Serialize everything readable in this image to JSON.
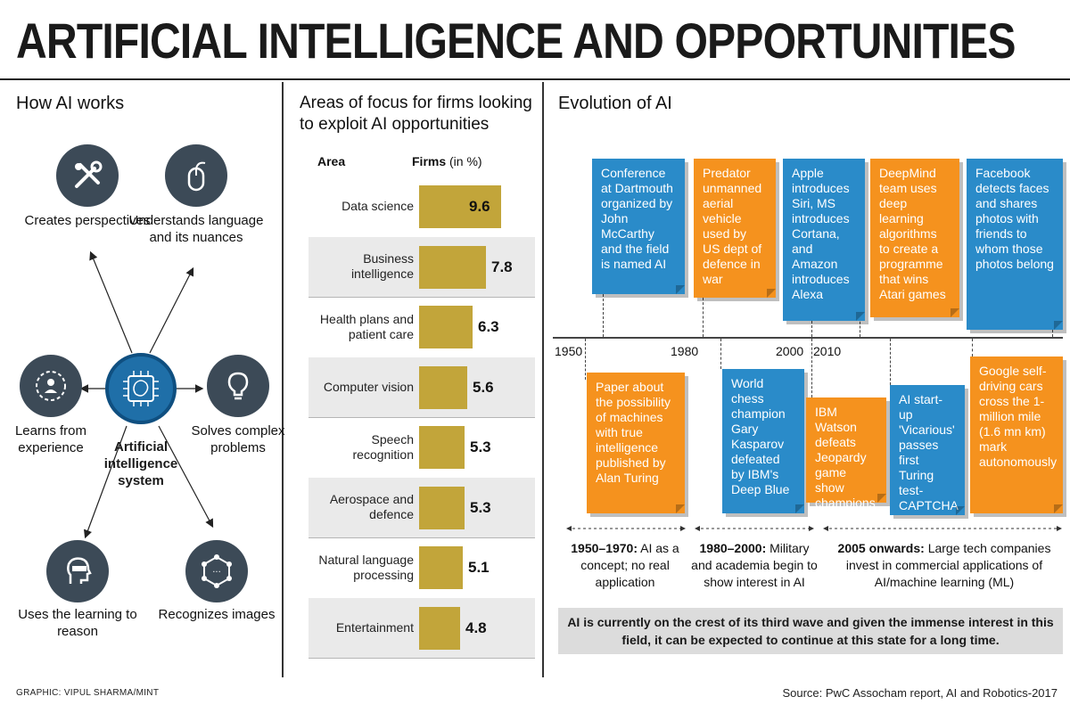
{
  "title": "ARTIFICIAL INTELLIGENCE AND OPPORTUNITIES",
  "how_ai": {
    "heading": "How AI works",
    "center": "Artificial intelligence system",
    "nodes": [
      {
        "label": "Creates perspectives",
        "icon": "tools-icon"
      },
      {
        "label": "Understands language and its nuances",
        "icon": "mouse-icon"
      },
      {
        "label": "Learns from experience",
        "icon": "learning-icon"
      },
      {
        "label": "Solves complex problems",
        "icon": "lightbulb-icon"
      },
      {
        "label": "Uses the learning to reason",
        "icon": "vr-head-icon"
      },
      {
        "label": "Recognizes images",
        "icon": "network-icon"
      }
    ]
  },
  "chart_data": {
    "type": "bar",
    "title": "Areas of focus for firms looking to exploit AI opportunities",
    "xlabel": "Firms (in %)",
    "ylabel": "Area",
    "col_head_area": "Area",
    "col_head_firms": "Firms",
    "col_head_unit": "(in %)",
    "categories": [
      "Data science",
      "Business intelligence",
      "Health plans and patient care",
      "Computer vision",
      "Speech recognition",
      "Aerospace and defence",
      "Natural language processing",
      "Entertainment"
    ],
    "values": [
      9.6,
      7.8,
      6.3,
      5.6,
      5.3,
      5.3,
      5.1,
      4.8
    ],
    "value_labels": [
      "9.6",
      "7.8",
      "6.3",
      "5.6",
      "5.3",
      "5.3",
      "5.1",
      "4.8"
    ],
    "bar_color": "#c2a53a",
    "xlim": [
      0,
      10
    ]
  },
  "evolution": {
    "heading": "Evolution of AI",
    "years": [
      "1950",
      "1980",
      "2000",
      "2010"
    ],
    "top_cards": [
      {
        "text": "Conference at Dartmouth organized by John McCarthy and the field is named AI",
        "color": "blue"
      },
      {
        "text": "Predator unmanned aerial vehicle used by US dept of defence in war",
        "color": "orange"
      },
      {
        "text": "Apple introduces Siri, MS introduces Cortana, and Amazon introduces Alexa",
        "color": "blue"
      },
      {
        "text": "DeepMind team uses deep learning algorithms to create a programme that wins Atari games",
        "color": "orange"
      },
      {
        "text": "Facebook detects faces and shares photos with friends to whom those photos belong",
        "color": "blue"
      }
    ],
    "bottom_cards": [
      {
        "text": "Paper about the possibility of machines with true intelligence published by Alan Turing",
        "color": "orange"
      },
      {
        "text": "World chess champion Gary Kasparov defeated by IBM's Deep Blue",
        "color": "blue"
      },
      {
        "text": "IBM Watson defeats Jeopardy game show champions",
        "color": "orange"
      },
      {
        "text": "AI start-up 'Vicarious' passes first Turing test-CAPTCHA",
        "color": "blue"
      },
      {
        "text": "Google self-driving cars cross the 1-million mile (1.6 mn km) mark autonomously",
        "color": "orange"
      }
    ],
    "eras": [
      {
        "bold": "1950–1970:",
        "text": " AI as a concept; no real application"
      },
      {
        "bold": "1980–2000:",
        "text": " Military and academia begin to show interest in AI"
      },
      {
        "bold": "2005 onwards:",
        "text": " Large tech companies invest in commercial applications of AI/machine learning (ML)"
      }
    ],
    "note": "AI is currently on the crest of its third wave and given the immense interest in this field, it can be expected to continue at this state for a long time."
  },
  "credit": "GRAPHIC: VIPUL SHARMA/MINT",
  "source": "Source: PwC Assocham report, AI and Robotics-2017",
  "colors": {
    "blue": "#2a8bc9",
    "orange": "#f5921e",
    "icon_bg": "#3c4a57",
    "center": "#1f6fa8"
  }
}
